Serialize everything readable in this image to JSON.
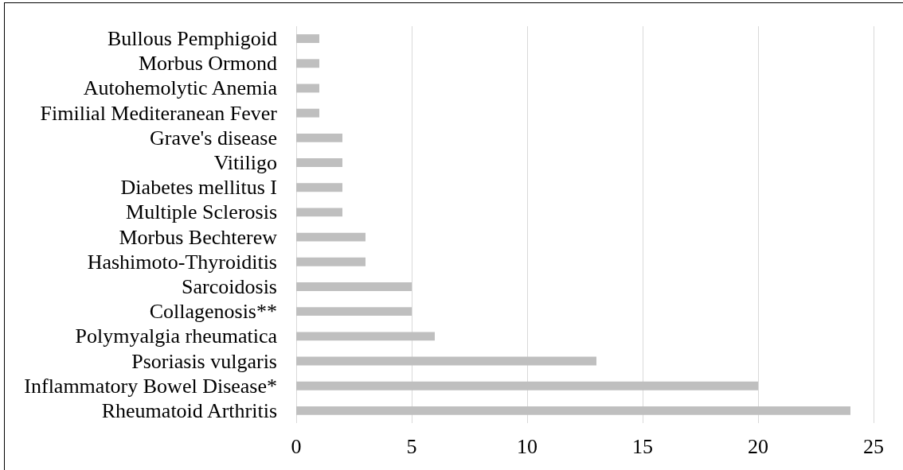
{
  "chart_data": {
    "type": "bar",
    "orientation": "horizontal",
    "categories": [
      "Bullous Pemphigoid",
      "Morbus Ormond",
      "Autohemolytic Anemia",
      "Fimilial Mediteranean Fever",
      "Grave's disease",
      "Vitiligo",
      "Diabetes mellitus I",
      "Multiple Sclerosis",
      "Morbus Bechterew",
      "Hashimoto-Thyroiditis",
      "Sarcoidosis",
      "Collagenosis**",
      "Polymyalgia rheumatica",
      "Psoriasis vulgaris",
      "Inflammatory Bowel Disease*",
      "Rheumatoid Arthritis"
    ],
    "values": [
      1,
      1,
      1,
      1,
      2,
      2,
      2,
      2,
      3,
      3,
      5,
      5,
      6,
      13,
      20,
      24
    ],
    "color": "#bfbfbf",
    "xlim": [
      0,
      25
    ],
    "xticks": [
      0,
      5,
      10,
      15,
      20,
      25
    ],
    "grid": "x"
  }
}
